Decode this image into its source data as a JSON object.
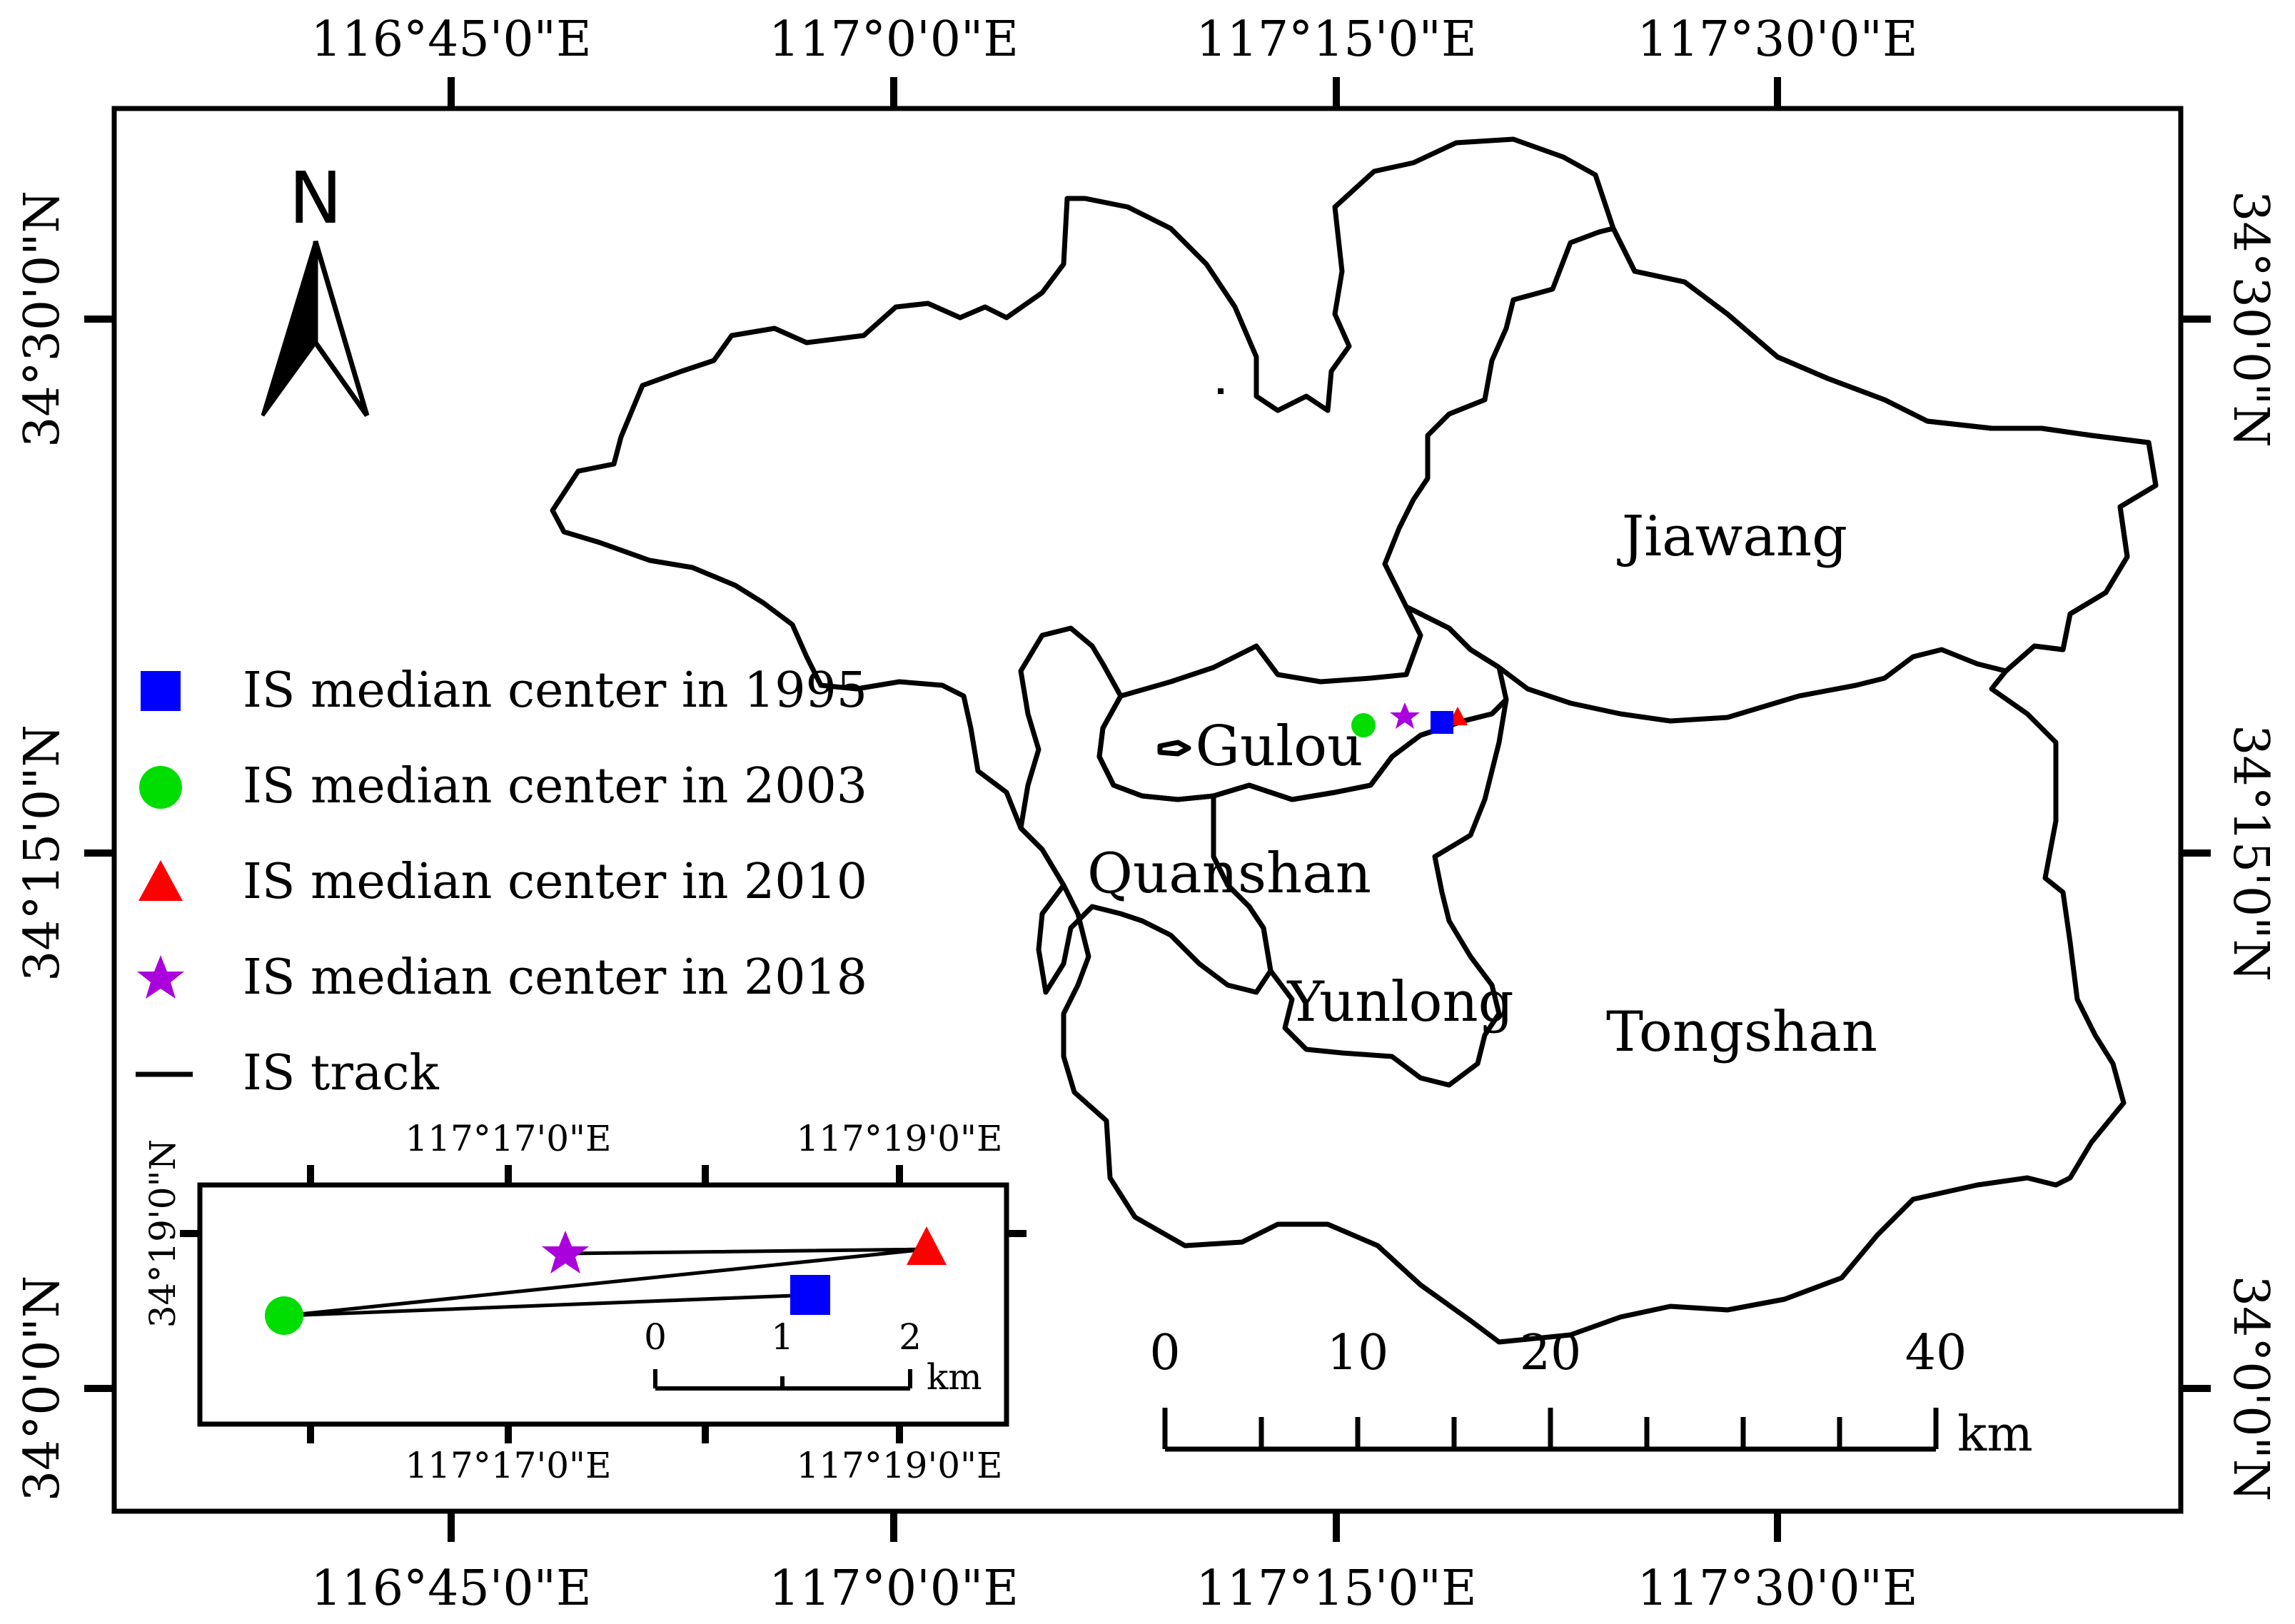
{
  "map": {
    "top_lon_labels": [
      "116°45'0\"E",
      "117°0'0\"E",
      "117°15'0\"E",
      "117°30'0\"E"
    ],
    "bottom_lon_labels": [
      "116°45'0\"E",
      "117°0'0\"E",
      "117°15'0\"E",
      "117°30'0\"E"
    ],
    "left_lat_labels": [
      "34°30'0\"N",
      "34°15'0\"N",
      "34°0'0\"N"
    ],
    "right_lat_labels": [
      "34°30'0\"N",
      "34°15'0\"N",
      "34°0'0\"N"
    ],
    "north_arrow_label": "N",
    "districts": {
      "jiawang": "Jiawang",
      "gulou": "Gulou",
      "quanshan": "Quanshan",
      "yunlong": "Yunlong",
      "tongshan": "Tongshan"
    }
  },
  "legend": {
    "items": [
      {
        "label": "IS median center in 1995",
        "symbol": "square",
        "color": "#0000ff"
      },
      {
        "label": "IS median center in 2003",
        "symbol": "circle",
        "color": "#00dd00"
      },
      {
        "label": "IS median center in 2010",
        "symbol": "triangle",
        "color": "#ff0000"
      },
      {
        "label": "IS median center in 2018",
        "symbol": "star",
        "color": "#aa00dd"
      },
      {
        "label": "IS track",
        "symbol": "line",
        "color": "#000000"
      }
    ]
  },
  "scale_bar": {
    "labels": [
      "0",
      "10",
      "20",
      "40"
    ],
    "unit": "km"
  },
  "inset": {
    "top_lon_labels": [
      "117°17'0\"E",
      "117°19'0\"E"
    ],
    "bottom_lon_labels": [
      "117°17'0\"E",
      "117°19'0\"E"
    ],
    "lat_label": "34°19'0\"N",
    "scale_labels": [
      "0",
      "1",
      "2"
    ],
    "scale_unit": "km"
  }
}
